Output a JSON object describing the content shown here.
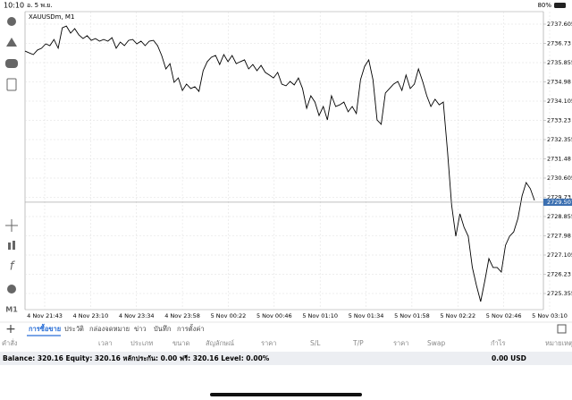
{
  "status_bar": {
    "time": "10:10",
    "date": "อ. 5 พ.ย.",
    "battery": "80%"
  },
  "toolbar": {
    "timeframe": "M1"
  },
  "chart_data": {
    "type": "line",
    "title": "XAUUSDm, M1",
    "color": "#000000",
    "x_labels": [
      "4 Nov 21:43",
      "4 Nov 23:10",
      "4 Nov 23:34",
      "4 Nov 23:58",
      "5 Nov 00:22",
      "5 Nov 00:46",
      "5 Nov 01:10",
      "5 Nov 01:34",
      "5 Nov 01:58",
      "5 Nov 02:22",
      "5 Nov 02:46",
      "5 Nov 03:10"
    ],
    "values": [
      2736.38,
      2736.3,
      2736.22,
      2736.43,
      2736.51,
      2736.71,
      2736.63,
      2736.91,
      2736.51,
      2737.44,
      2737.52,
      2737.2,
      2737.4,
      2737.12,
      2736.95,
      2737.08,
      2736.87,
      2736.95,
      2736.83,
      2736.91,
      2736.83,
      2736.99,
      2736.51,
      2736.79,
      2736.63,
      2736.87,
      2736.91,
      2736.71,
      2736.83,
      2736.63,
      2736.83,
      2736.87,
      2736.63,
      2736.18,
      2735.57,
      2735.81,
      2734.96,
      2735.16,
      2734.59,
      2734.88,
      2734.68,
      2734.76,
      2734.55,
      2735.49,
      2735.9,
      2736.1,
      2736.18,
      2735.77,
      2736.22,
      2735.9,
      2736.18,
      2735.81,
      2735.9,
      2735.98,
      2735.57,
      2735.77,
      2735.49,
      2735.73,
      2735.41,
      2735.29,
      2735.16,
      2735.41,
      2734.88,
      2734.8,
      2735.0,
      2734.84,
      2735.16,
      2734.68,
      2733.78,
      2734.35,
      2734.06,
      2733.45,
      2733.86,
      2733.25,
      2734.35,
      2733.86,
      2733.94,
      2734.06,
      2733.62,
      2733.86,
      2733.54,
      2735.08,
      2735.69,
      2735.98,
      2735.08,
      2733.25,
      2733.05,
      2734.47,
      2734.68,
      2734.88,
      2735.0,
      2734.59,
      2735.29,
      2734.68,
      2734.88,
      2735.57,
      2735.0,
      2734.35,
      2733.86,
      2734.19,
      2733.94,
      2734.06,
      2731.83,
      2729.38,
      2727.96,
      2728.98,
      2728.37,
      2727.96,
      2726.54,
      2725.72,
      2724.99,
      2725.92,
      2726.94,
      2726.54,
      2726.54,
      2726.33,
      2727.55,
      2727.96,
      2728.16,
      2728.77,
      2729.79,
      2730.4,
      2730.12,
      2729.59
    ],
    "current_price": 2729.507,
    "ylim": [
      2724.622,
      2738.175
    ],
    "yticks": [
      2725.355,
      2726.23,
      2727.105,
      2727.98,
      2728.855,
      2729.73,
      2730.605,
      2731.48,
      2732.355,
      2733.23,
      2734.105,
      2734.98,
      2735.855,
      2736.73,
      2737.605
    ],
    "grid": true
  },
  "tabs": [
    "การซื้อขาย",
    "ประวัติ",
    "กล่องจดหมาย",
    "ข่าว",
    "บันทึก",
    "การตั้งค่า"
  ],
  "table": {
    "columns": [
      "คำสั่ง",
      "เวลา",
      "ประเภท",
      "ขนาด",
      "สัญลักษณ์",
      "ราคา",
      "S/L",
      "T/P",
      "ราคา",
      "Swap",
      "กำไร",
      "หมายเหตุ"
    ]
  },
  "summary": {
    "text": "Balance: 320.16 Equity: 320.16 หลักประกัน: 0.00 ฟรี: 320.16 Level: 0.00%",
    "profit": "0.00  USD"
  }
}
